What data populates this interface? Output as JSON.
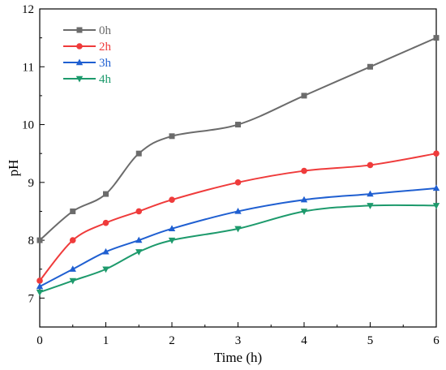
{
  "chart_data": {
    "type": "line",
    "title": "",
    "xlabel": "Time (h)",
    "ylabel": "pH",
    "xlim": [
      0,
      6
    ],
    "ylim": [
      6.5,
      12
    ],
    "x_ticks": [
      0,
      1,
      2,
      3,
      4,
      5,
      6
    ],
    "y_ticks": [
      7,
      8,
      9,
      10,
      11,
      12
    ],
    "x_tick_labels": [
      "0",
      "1",
      "2",
      "3",
      "4",
      "5",
      "6"
    ],
    "y_tick_labels": [
      "7",
      "8",
      "9",
      "10",
      "11",
      "12"
    ],
    "grid": false,
    "legend_position": "top-left",
    "x": [
      0,
      0.5,
      1,
      1.5,
      2,
      3,
      4,
      5,
      6
    ],
    "series": [
      {
        "name": "0h",
        "color": "#6b6b6b",
        "marker": "square",
        "values": [
          8.0,
          8.5,
          8.8,
          9.5,
          9.8,
          10.0,
          10.5,
          11.0,
          11.5
        ]
      },
      {
        "name": "2h",
        "color": "#ef3b3b",
        "marker": "circle",
        "values": [
          7.3,
          8.0,
          8.3,
          8.5,
          8.7,
          9.0,
          9.2,
          9.3,
          9.5
        ]
      },
      {
        "name": "3h",
        "color": "#1f5fd1",
        "marker": "triangle-up",
        "values": [
          7.2,
          7.5,
          7.8,
          8.0,
          8.2,
          8.5,
          8.7,
          8.8,
          8.9
        ]
      },
      {
        "name": "4h",
        "color": "#1d9a6c",
        "marker": "triangle-down",
        "values": [
          7.1,
          7.3,
          7.5,
          7.8,
          8.0,
          8.2,
          8.5,
          8.6,
          8.6
        ]
      }
    ]
  }
}
